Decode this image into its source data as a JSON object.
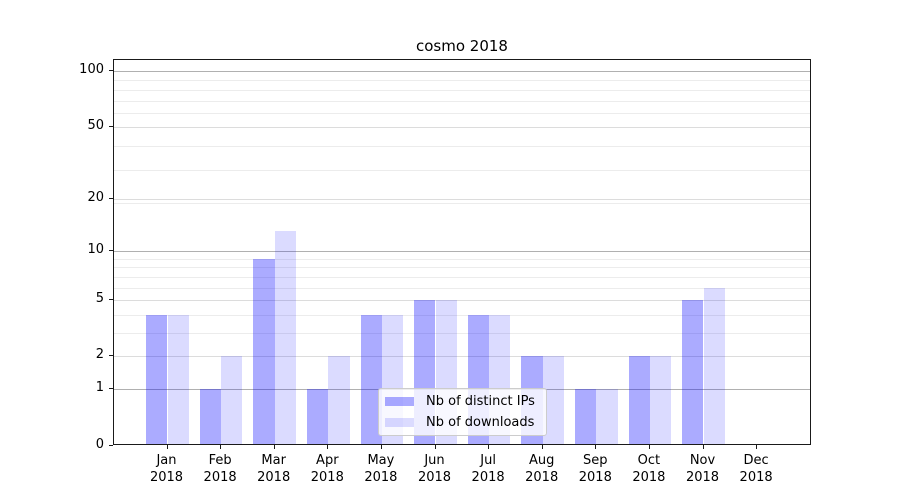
{
  "title": "cosmo 2018",
  "chart_data": {
    "type": "bar",
    "title": "cosmo 2018",
    "categories": [
      "Jan 2018",
      "Feb 2018",
      "Mar 2018",
      "Apr 2018",
      "May 2018",
      "Jun 2018",
      "Jul 2018",
      "Aug 2018",
      "Sep 2018",
      "Oct 2018",
      "Nov 2018",
      "Dec 2018"
    ],
    "x_tick_line1": [
      "Jan",
      "Feb",
      "Mar",
      "Apr",
      "May",
      "Jun",
      "Jul",
      "Aug",
      "Sep",
      "Oct",
      "Nov",
      "Dec"
    ],
    "x_tick_line2": "2018",
    "series": [
      {
        "name": "Nb of distinct IPs",
        "color": "#0000ff54",
        "values": [
          4,
          1,
          9,
          1,
          4,
          5,
          4,
          2,
          1,
          2,
          5,
          0
        ]
      },
      {
        "name": "Nb of downloads",
        "color": "#0000ff24",
        "values": [
          4,
          2,
          13,
          2,
          4,
          5,
          4,
          2,
          1,
          2,
          6,
          0
        ]
      }
    ],
    "y_axis": {
      "scale": "log1p",
      "ticks": [
        0,
        1,
        2,
        5,
        10,
        20,
        50,
        100
      ],
      "emphasized_gridlines": [
        1,
        10,
        100
      ],
      "minor_gridlines": [
        3,
        4,
        6,
        7,
        8,
        9,
        19,
        29,
        39,
        59,
        69,
        79,
        89
      ],
      "ylim": [
        0,
        115
      ]
    },
    "legend": {
      "position": "lower-center",
      "entries": [
        "Nb of distinct IPs",
        "Nb of downloads"
      ]
    },
    "grid": true
  }
}
